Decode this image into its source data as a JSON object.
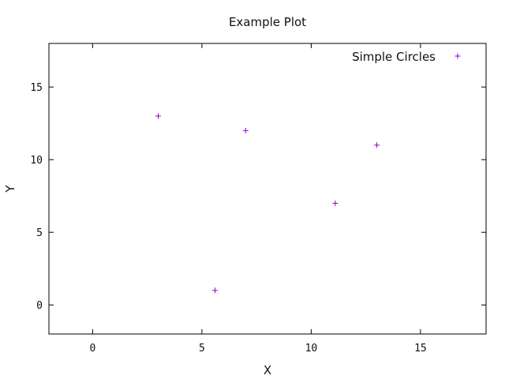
{
  "chart_data": {
    "type": "scatter",
    "title": "Example Plot",
    "xlabel": "X",
    "ylabel": "Y",
    "xlim": [
      -2,
      18
    ],
    "ylim": [
      -2,
      18
    ],
    "xticks": [
      0,
      5,
      10,
      15
    ],
    "yticks": [
      0,
      5,
      10,
      15
    ],
    "grid": false,
    "legend_position": "top-right",
    "series": [
      {
        "name": "Simple Circles",
        "marker": "plus",
        "color": "#9400D3",
        "points": [
          {
            "x": 3.0,
            "y": 13.0
          },
          {
            "x": 7.0,
            "y": 12.0
          },
          {
            "x": 13.0,
            "y": 11.0
          },
          {
            "x": 11.1,
            "y": 7.0
          },
          {
            "x": 5.6,
            "y": 1.0
          }
        ]
      }
    ]
  }
}
